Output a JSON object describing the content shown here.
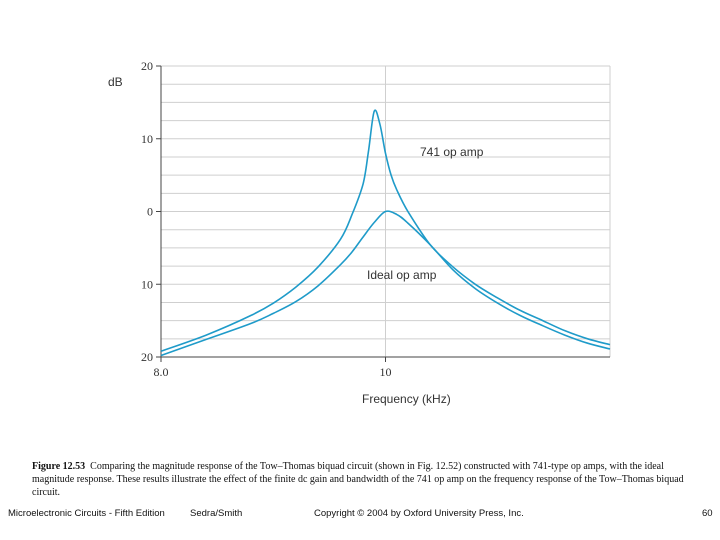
{
  "chart_data": {
    "type": "line",
    "ylabel": "dB",
    "xlabel": "Frequency (kHz)",
    "y_ticks": [
      "20",
      "10",
      "0",
      "10",
      "20"
    ],
    "y_tick_values": [
      20,
      10,
      0,
      -10,
      -20
    ],
    "x_ticks": [
      "8.0",
      "10"
    ],
    "x_tick_values": [
      8.0,
      10.0
    ],
    "xlim": [
      8.0,
      12.0
    ],
    "ylim": [
      -20,
      20
    ],
    "grid": true,
    "series": [
      {
        "name": "741 op amp",
        "x": [
          8.0,
          8.4,
          8.8,
          9.0,
          9.2,
          9.4,
          9.6,
          9.7,
          9.8,
          9.85,
          9.9,
          9.95,
          10.0,
          10.05,
          10.1,
          10.2,
          10.4,
          10.6,
          10.8,
          11.0,
          11.2,
          11.4,
          11.6,
          11.8,
          12.0
        ],
        "values": [
          -19.2,
          -17.0,
          -14.3,
          -12.6,
          -10.4,
          -7.6,
          -3.8,
          -0.5,
          3.8,
          8.5,
          13.8,
          12.0,
          8.0,
          5.0,
          3.0,
          0.0,
          -4.6,
          -7.6,
          -10.0,
          -11.9,
          -13.6,
          -15.0,
          -16.4,
          -17.5,
          -18.3
        ]
      },
      {
        "name": "Ideal op amp",
        "x": [
          8.0,
          8.4,
          8.8,
          9.0,
          9.2,
          9.4,
          9.6,
          9.7,
          9.8,
          9.9,
          10.0,
          10.1,
          10.2,
          10.4,
          10.6,
          10.8,
          11.0,
          11.2,
          11.4,
          11.6,
          11.8,
          12.0
        ],
        "values": [
          -19.8,
          -17.6,
          -15.4,
          -14.0,
          -12.4,
          -10.2,
          -7.3,
          -5.6,
          -3.5,
          -1.5,
          0.0,
          -0.4,
          -1.6,
          -4.6,
          -8.0,
          -10.6,
          -12.6,
          -14.3,
          -15.7,
          -17.0,
          -18.1,
          -18.9
        ]
      }
    ],
    "annotations": [
      "741 op amp",
      "Ideal op amp"
    ]
  },
  "caption": {
    "label": "Figure 12.53",
    "text": "Comparing the magnitude response of the Tow–Thomas biquad circuit (shown in Fig. 12.52) constructed with 741-type op amps, with the ideal magnitude response. These results illustrate the effect of the finite dc gain and bandwidth of the 741 op amp on the frequency response of the Tow–Thomas biquad circuit."
  },
  "footer": {
    "book": "Microelectronic Circuits - Fifth Edition",
    "authors": "Sedra/Smith",
    "copyright": "Copyright © 2004 by Oxford University Press, Inc.",
    "page": "60"
  },
  "colors": {
    "curve": "#1f9bc9",
    "grid": "#cfcfcf",
    "axis": "#444444"
  }
}
